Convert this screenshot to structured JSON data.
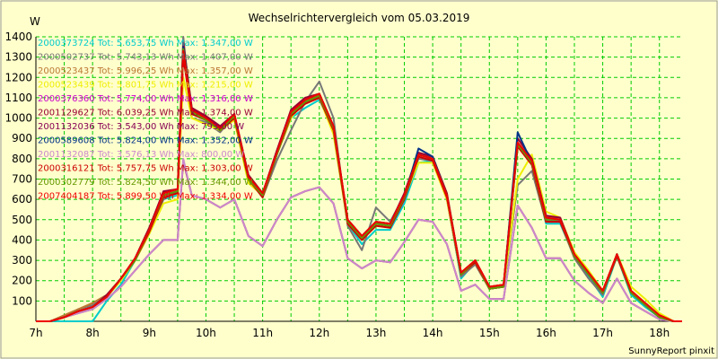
{
  "chart_data": {
    "type": "line",
    "title": "Wechselrichtervergleich vom 05.03.2019",
    "ylabel": "W",
    "xlabel": "",
    "footer": "SunnyReport pinxit",
    "ylim": [
      0,
      1400
    ],
    "xlim": [
      7.0,
      18.4
    ],
    "grid": true,
    "legend_position": "top-left",
    "yticks": [
      100,
      200,
      300,
      400,
      500,
      600,
      700,
      800,
      900,
      1000,
      1100,
      1200,
      1300,
      1400
    ],
    "xticks": [
      {
        "value": 7,
        "label": "7h"
      },
      {
        "value": 8,
        "label": "8h"
      },
      {
        "value": 9,
        "label": "9h"
      },
      {
        "value": 10,
        "label": "10h"
      },
      {
        "value": 11,
        "label": "11h"
      },
      {
        "value": 12,
        "label": "12h"
      },
      {
        "value": 13,
        "label": "13h"
      },
      {
        "value": 14,
        "label": "14h"
      },
      {
        "value": 15,
        "label": "15h"
      },
      {
        "value": 16,
        "label": "16h"
      },
      {
        "value": 17,
        "label": "17h"
      },
      {
        "value": 18,
        "label": "18h"
      }
    ],
    "x": [
      7.0,
      7.25,
      7.5,
      7.75,
      8.0,
      8.25,
      8.5,
      8.75,
      9.0,
      9.25,
      9.5,
      9.6,
      9.75,
      10.0,
      10.25,
      10.5,
      10.75,
      11.0,
      11.25,
      11.5,
      11.75,
      12.0,
      12.25,
      12.5,
      12.75,
      13.0,
      13.25,
      13.5,
      13.75,
      14.0,
      14.25,
      14.5,
      14.75,
      15.0,
      15.25,
      15.5,
      15.75,
      16.0,
      16.25,
      16.5,
      16.75,
      17.0,
      17.25,
      17.5,
      17.75,
      18.0,
      18.25,
      18.4
    ],
    "series": [
      {
        "name": "2000373724",
        "legend": "2000373724 Tot: 5.653,75 Wh Max: 1.347,00 W",
        "color": "#00cccc",
        "values": [
          0,
          0,
          0,
          0,
          0,
          100,
          180,
          300,
          430,
          600,
          620,
          1340,
          1020,
          990,
          940,
          1020,
          700,
          620,
          820,
          1000,
          1050,
          1090,
          940,
          480,
          380,
          450,
          450,
          580,
          780,
          790,
          610,
          210,
          290,
          160,
          170,
          870,
          770,
          480,
          480,
          320,
          220,
          120,
          320,
          130,
          70,
          20,
          0,
          0
        ]
      },
      {
        "name": "2000502737",
        "legend": "2000502737 Tot: 5.743,13 Wh Max: 1.407,00 W",
        "color": "#777777",
        "values": [
          0,
          0,
          20,
          60,
          80,
          120,
          200,
          300,
          440,
          600,
          640,
          1400,
          1000,
          980,
          930,
          1010,
          700,
          610,
          790,
          940,
          1080,
          1180,
          1000,
          470,
          350,
          560,
          490,
          620,
          800,
          790,
          600,
          220,
          280,
          160,
          170,
          670,
          740,
          490,
          490,
          310,
          210,
          130,
          330,
          140,
          80,
          20,
          0,
          0
        ]
      },
      {
        "name": "2000523437",
        "legend": "2000523437 Tot: 5.996,25 Wh Max: 1.357,00 W",
        "color": "#bb7733",
        "values": [
          0,
          0,
          30,
          60,
          90,
          130,
          210,
          310,
          460,
          630,
          650,
          1350,
          1050,
          1010,
          960,
          1020,
          720,
          630,
          830,
          1040,
          1100,
          1120,
          960,
          500,
          420,
          490,
          480,
          620,
          820,
          810,
          630,
          240,
          300,
          170,
          180,
          880,
          790,
          520,
          500,
          330,
          240,
          150,
          330,
          150,
          90,
          30,
          0,
          0
        ]
      },
      {
        "name": "2000523439",
        "legend": "2000523439 Tot: 5.801,75 Wh Max: 1.215,00 W",
        "color": "#eeee00",
        "values": [
          0,
          0,
          20,
          50,
          70,
          120,
          200,
          300,
          430,
          580,
          600,
          1200,
          1000,
          970,
          940,
          990,
          680,
          620,
          820,
          1000,
          1090,
          1100,
          920,
          480,
          400,
          470,
          470,
          610,
          780,
          780,
          600,
          230,
          290,
          160,
          170,
          700,
          820,
          540,
          510,
          340,
          250,
          150,
          330,
          170,
          110,
          40,
          0,
          0
        ]
      },
      {
        "name": "2000376360",
        "legend": "2000376360 Tot: 5.774,00 Wh Max: 1.316,00 W",
        "color": "#cc00cc",
        "values": [
          0,
          0,
          20,
          50,
          70,
          120,
          210,
          310,
          450,
          620,
          640,
          1310,
          1030,
          1000,
          950,
          1010,
          710,
          620,
          830,
          1020,
          1080,
          1110,
          950,
          490,
          410,
          480,
          470,
          610,
          820,
          800,
          620,
          230,
          300,
          160,
          170,
          870,
          780,
          500,
          500,
          320,
          230,
          140,
          330,
          140,
          80,
          20,
          0,
          0
        ]
      },
      {
        "name": "2001129627",
        "legend": "2001129627 Tot: 6.039,25 Wh Max: 1.374,00 W",
        "color": "#990033",
        "values": [
          0,
          0,
          20,
          50,
          70,
          130,
          210,
          310,
          460,
          640,
          650,
          1370,
          1050,
          1010,
          960,
          1020,
          720,
          630,
          840,
          1040,
          1100,
          1120,
          960,
          500,
          420,
          490,
          480,
          630,
          830,
          810,
          630,
          240,
          300,
          170,
          180,
          900,
          800,
          520,
          510,
          330,
          240,
          150,
          330,
          150,
          90,
          30,
          0,
          0
        ]
      },
      {
        "name": "2001132036",
        "legend": "2001132036 Tot: 3.543,00 Wh Max: 793,00 W",
        "color": "#880055",
        "values": [
          0,
          0,
          20,
          40,
          60,
          110,
          170,
          250,
          330,
          400,
          400,
          790,
          620,
          600,
          560,
          600,
          420,
          370,
          500,
          610,
          640,
          660,
          580,
          310,
          260,
          300,
          290,
          390,
          500,
          490,
          380,
          150,
          180,
          110,
          110,
          570,
          460,
          310,
          310,
          200,
          140,
          90,
          210,
          90,
          50,
          10,
          0,
          0
        ]
      },
      {
        "name": "2000589608",
        "legend": "2000589608 Tot: 5.824,00 Wh Max: 1.352,00 W",
        "color": "#003388",
        "values": [
          0,
          0,
          20,
          50,
          70,
          120,
          210,
          300,
          450,
          620,
          640,
          1350,
          1040,
          1000,
          950,
          1010,
          710,
          620,
          830,
          1020,
          1080,
          1110,
          950,
          490,
          410,
          480,
          470,
          610,
          850,
          810,
          620,
          230,
          300,
          160,
          170,
          930,
          780,
          500,
          500,
          320,
          230,
          140,
          330,
          140,
          80,
          20,
          0,
          0
        ]
      },
      {
        "name": "2001132087",
        "legend": "2001132087 Tot: 3.576,13 Wh Max: 800,00 W",
        "color": "#cc88cc",
        "values": [
          0,
          0,
          20,
          40,
          60,
          110,
          170,
          250,
          330,
          400,
          400,
          800,
          620,
          600,
          560,
          600,
          420,
          370,
          500,
          610,
          640,
          660,
          580,
          310,
          260,
          300,
          290,
          390,
          500,
          490,
          380,
          150,
          180,
          110,
          110,
          570,
          460,
          310,
          310,
          200,
          140,
          90,
          210,
          90,
          50,
          10,
          0,
          0
        ]
      },
      {
        "name": "2000316121",
        "legend": "2000316121 Tot: 5.757,75 Wh Max: 1.303,00 W",
        "color": "#cc0000",
        "values": [
          0,
          0,
          20,
          50,
          70,
          120,
          210,
          300,
          440,
          610,
          630,
          1300,
          1020,
          990,
          940,
          1000,
          700,
          610,
          820,
          1010,
          1070,
          1100,
          940,
          480,
          400,
          470,
          460,
          600,
          810,
          790,
          610,
          230,
          290,
          160,
          170,
          860,
          770,
          490,
          490,
          320,
          230,
          140,
          320,
          140,
          80,
          20,
          0,
          0
        ]
      },
      {
        "name": "2000302779",
        "legend": "2000302779 Tot: 5.824,50 Wh Max: 1.344,00 W",
        "color": "#669900",
        "values": [
          0,
          0,
          20,
          50,
          70,
          120,
          210,
          300,
          450,
          620,
          640,
          1340,
          1030,
          990,
          940,
          1010,
          700,
          620,
          820,
          1020,
          1080,
          1110,
          950,
          490,
          410,
          480,
          470,
          610,
          820,
          800,
          620,
          230,
          300,
          160,
          170,
          870,
          780,
          500,
          500,
          320,
          230,
          140,
          330,
          140,
          80,
          20,
          0,
          0
        ]
      },
      {
        "name": "2007404187",
        "legend": "2007404187 Tot: 5.899,50 Wh Max: 1.334,00 W",
        "color": "#ee0000",
        "values": [
          0,
          0,
          20,
          50,
          70,
          120,
          210,
          310,
          450,
          630,
          650,
          1330,
          1040,
          1000,
          950,
          1020,
          710,
          630,
          830,
          1030,
          1090,
          1120,
          960,
          500,
          420,
          490,
          480,
          620,
          820,
          800,
          620,
          240,
          300,
          170,
          180,
          880,
          790,
          510,
          500,
          330,
          240,
          150,
          330,
          150,
          90,
          30,
          0,
          0
        ]
      }
    ]
  }
}
